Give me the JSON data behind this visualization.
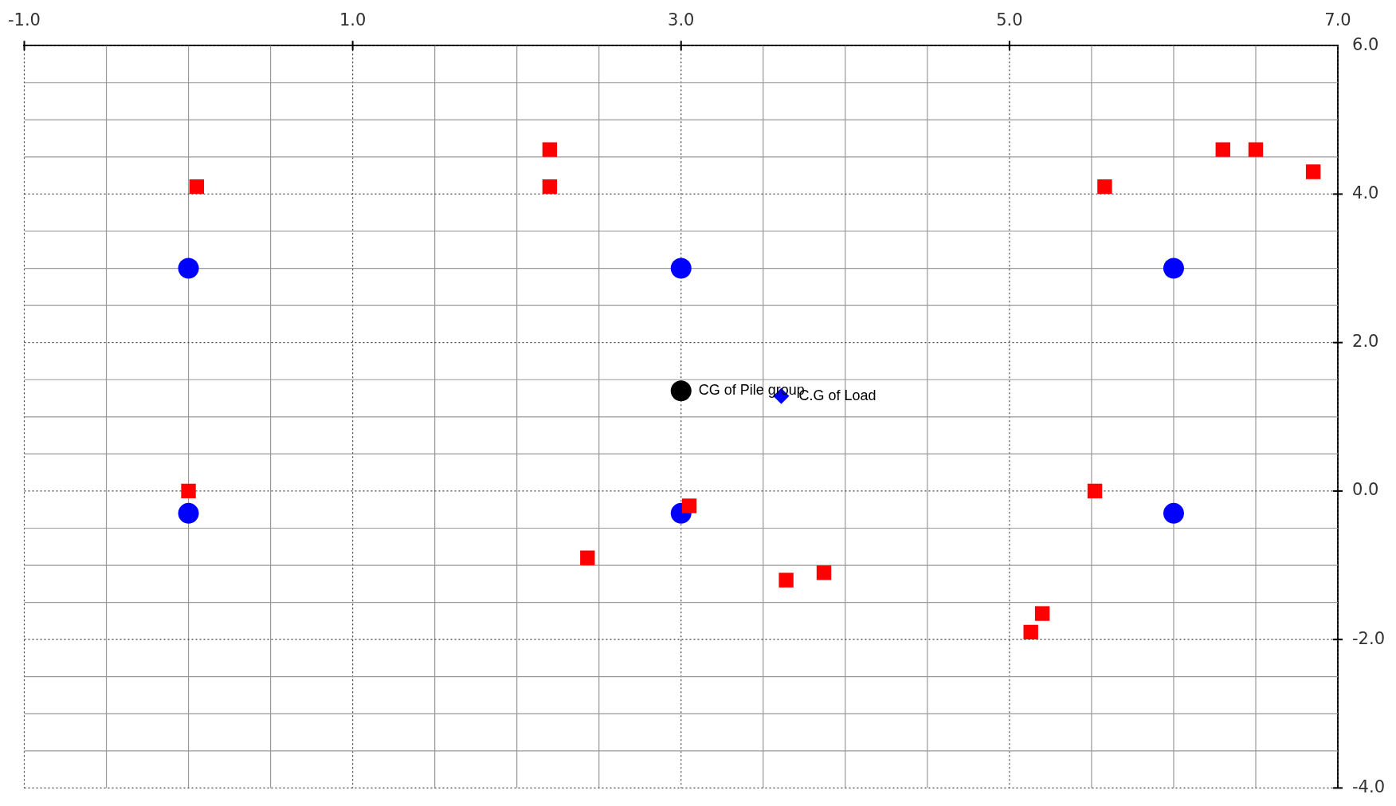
{
  "chart_data": {
    "type": "scatter",
    "grid": true,
    "legend": false,
    "xlim": [
      -1,
      7
    ],
    "ylim": [
      -4,
      6
    ],
    "xticks": [
      {
        "value": -1,
        "label": "-1.0"
      },
      {
        "value": -0.5,
        "label": null
      },
      {
        "value": 0,
        "label": null
      },
      {
        "value": 0.5,
        "label": null
      },
      {
        "value": 1,
        "label": "1.0"
      },
      {
        "value": 1.5,
        "label": null
      },
      {
        "value": 2,
        "label": null
      },
      {
        "value": 2.5,
        "label": null
      },
      {
        "value": 3,
        "label": "3.0"
      },
      {
        "value": 3.5,
        "label": null
      },
      {
        "value": 4,
        "label": null
      },
      {
        "value": 4.5,
        "label": null
      },
      {
        "value": 5,
        "label": "5.0"
      },
      {
        "value": 5.5,
        "label": null
      },
      {
        "value": 6,
        "label": null
      },
      {
        "value": 6.5,
        "label": null
      },
      {
        "value": 7,
        "label": "7.0"
      }
    ],
    "yticks": [
      {
        "value": -4,
        "label": "-4.0"
      },
      {
        "value": -3.5,
        "label": null
      },
      {
        "value": -3,
        "label": null
      },
      {
        "value": -2.5,
        "label": null
      },
      {
        "value": -2,
        "label": "-2.0"
      },
      {
        "value": -1.5,
        "label": null
      },
      {
        "value": -1,
        "label": null
      },
      {
        "value": -0.5,
        "label": null
      },
      {
        "value": 0,
        "label": "0.0"
      },
      {
        "value": 0.5,
        "label": null
      },
      {
        "value": 1,
        "label": null
      },
      {
        "value": 1.5,
        "label": null
      },
      {
        "value": 2,
        "label": "2.0"
      },
      {
        "value": 2.5,
        "label": null
      },
      {
        "value": 3,
        "label": null
      },
      {
        "value": 3.5,
        "label": null
      },
      {
        "value": 4,
        "label": "4.0"
      },
      {
        "value": 4.5,
        "label": null
      },
      {
        "value": 5,
        "label": null
      },
      {
        "value": 5.5,
        "label": null
      },
      {
        "value": 6,
        "label": "6.0"
      }
    ],
    "series": [
      {
        "color": "#ff0000",
        "marker": "square",
        "x": [
          0.05,
          2.2,
          2.2,
          5.58,
          6.3,
          6.5,
          6.85,
          0,
          3.05,
          2.43,
          3.64,
          3.87,
          5.2,
          5.13,
          5.52
        ],
        "values": [
          4.1,
          4.6,
          4.1,
          4.1,
          4.6,
          4.6,
          4.3,
          0,
          -0.2,
          -0.9,
          -1.2,
          -1.1,
          -1.65,
          -1.9,
          0
        ]
      },
      {
        "color": "#0000ff",
        "marker": "circle",
        "x": [
          0,
          3,
          6,
          0,
          3,
          6
        ],
        "values": [
          3,
          3,
          3,
          -0.3,
          -0.3,
          -0.3
        ]
      },
      {
        "color": "#000000",
        "marker": "circle",
        "x": [
          3
        ],
        "values": [
          1.35
        ]
      },
      {
        "color": "#0000ff",
        "marker": "diamond",
        "x": [
          3.61
        ],
        "values": [
          1.28
        ]
      }
    ],
    "annotations": [
      {
        "text": "CG of Pile group",
        "x": 3,
        "y": 1.35
      },
      {
        "text": "C.G of Load",
        "x": 3.61,
        "y": 1.28
      }
    ]
  }
}
